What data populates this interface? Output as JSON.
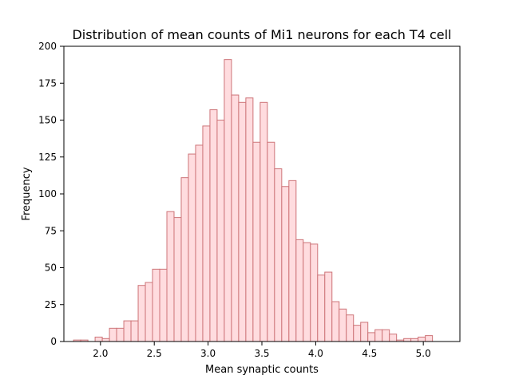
{
  "chart_data": {
    "type": "bar",
    "title": "Distribution of mean counts of Mi1 neurons for each T4 cell",
    "xlabel": "Mean synaptic counts",
    "ylabel": "Frequency",
    "xlim": [
      1.66,
      5.34
    ],
    "ylim": [
      0,
      200
    ],
    "xticks": [
      2.0,
      2.5,
      3.0,
      3.5,
      4.0,
      4.5,
      5.0
    ],
    "xtick_labels": [
      "2.0",
      "2.5",
      "3.0",
      "3.5",
      "4.0",
      "4.5",
      "5.0"
    ],
    "yticks": [
      0,
      25,
      50,
      75,
      100,
      125,
      150,
      175,
      200
    ],
    "ytick_labels": [
      "0",
      "25",
      "50",
      "75",
      "100",
      "125",
      "150",
      "175",
      "200"
    ],
    "bins": {
      "start": 1.75,
      "width": 0.0667,
      "counts": [
        1,
        1,
        0,
        3,
        2,
        9,
        9,
        14,
        14,
        38,
        40,
        49,
        49,
        88,
        84,
        111,
        127,
        133,
        146,
        157,
        150,
        191,
        167,
        162,
        165,
        135,
        162,
        135,
        117,
        105,
        109,
        69,
        67,
        66,
        45,
        47,
        27,
        22,
        18,
        11,
        13,
        6,
        8,
        8,
        5,
        1,
        2,
        2,
        3,
        4
      ]
    },
    "grid": false,
    "legend": "none",
    "colors": {
      "bar_fill": "#ffdcdf",
      "bar_edge": "#cd7478"
    }
  }
}
